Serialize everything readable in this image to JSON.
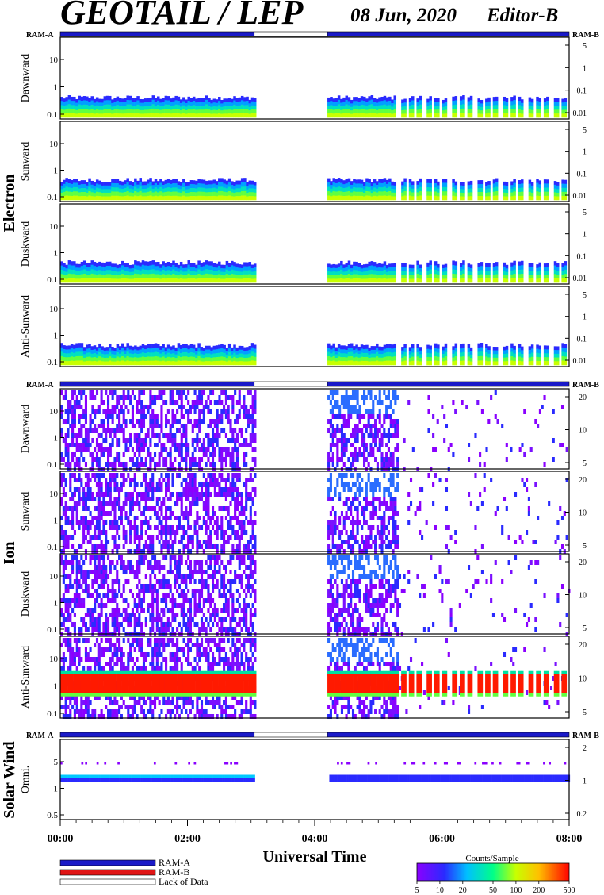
{
  "header": {
    "title": "GEOTAIL / LEP",
    "date": "08 Jun, 2020",
    "editor": "Editor-B"
  },
  "mode_labels": {
    "ram_a": "RAM-A",
    "ram_b": "RAM-B"
  },
  "chart_data": {
    "type": "heatmap",
    "x_axis": {
      "label": "Universal Time",
      "ticks": [
        "00:00",
        "02:00",
        "04:00",
        "06:00",
        "08:00"
      ],
      "range_hours": [
        0,
        8
      ]
    },
    "data_gaps_hours": [
      [
        3.05,
        4.2
      ]
    ],
    "ram_bars": [
      {
        "range": [
          0,
          3.05
        ],
        "mode": "RAM-A"
      },
      {
        "range": [
          3.05,
          4.2
        ],
        "mode": "Lack of Data"
      },
      {
        "range": [
          4.2,
          8
        ],
        "mode": "RAM-A"
      }
    ],
    "groups": [
      {
        "name": "Electron",
        "left_ticks": [
          "10",
          "1",
          "0.1"
        ],
        "right_ticks": [
          "5",
          "1",
          "0.1",
          "0.01"
        ],
        "panels": [
          {
            "name": "Dawnward"
          },
          {
            "name": "Sunward"
          },
          {
            "name": "Duskward"
          },
          {
            "name": "Anti-Sunward"
          }
        ]
      },
      {
        "name": "Ion",
        "left_ticks": [
          "10",
          "1",
          "0.1"
        ],
        "right_ticks": [
          "20",
          "10",
          "5"
        ],
        "panels": [
          {
            "name": "Dawnward"
          },
          {
            "name": "Sunward"
          },
          {
            "name": "Duskward"
          },
          {
            "name": "Anti-Sunward"
          }
        ]
      },
      {
        "name": "Solar Wind",
        "left_ticks": [
          "5",
          "1",
          "0.5"
        ],
        "right_ticks": [
          "2",
          "1",
          "0.2"
        ],
        "panels": [
          {
            "name": "Omni."
          }
        ]
      }
    ],
    "legend": {
      "items": [
        {
          "label": "RAM-A",
          "color": "#1a1ac8"
        },
        {
          "label": "RAM-B",
          "color": "#e01414"
        },
        {
          "label": "Lack of Data",
          "color": "#ffffff"
        }
      ]
    },
    "colorbar": {
      "title": "Counts/Sample",
      "ticks": [
        "5",
        "10",
        "20",
        "50",
        "100",
        "200",
        "500"
      ],
      "scale": "log",
      "range": [
        5,
        500
      ],
      "colors": [
        "#8a00ff",
        "#1a3cff",
        "#00c8ff",
        "#00ff80",
        "#c8ff00",
        "#ffc800",
        "#ff2a00",
        "#ff0000"
      ]
    }
  }
}
